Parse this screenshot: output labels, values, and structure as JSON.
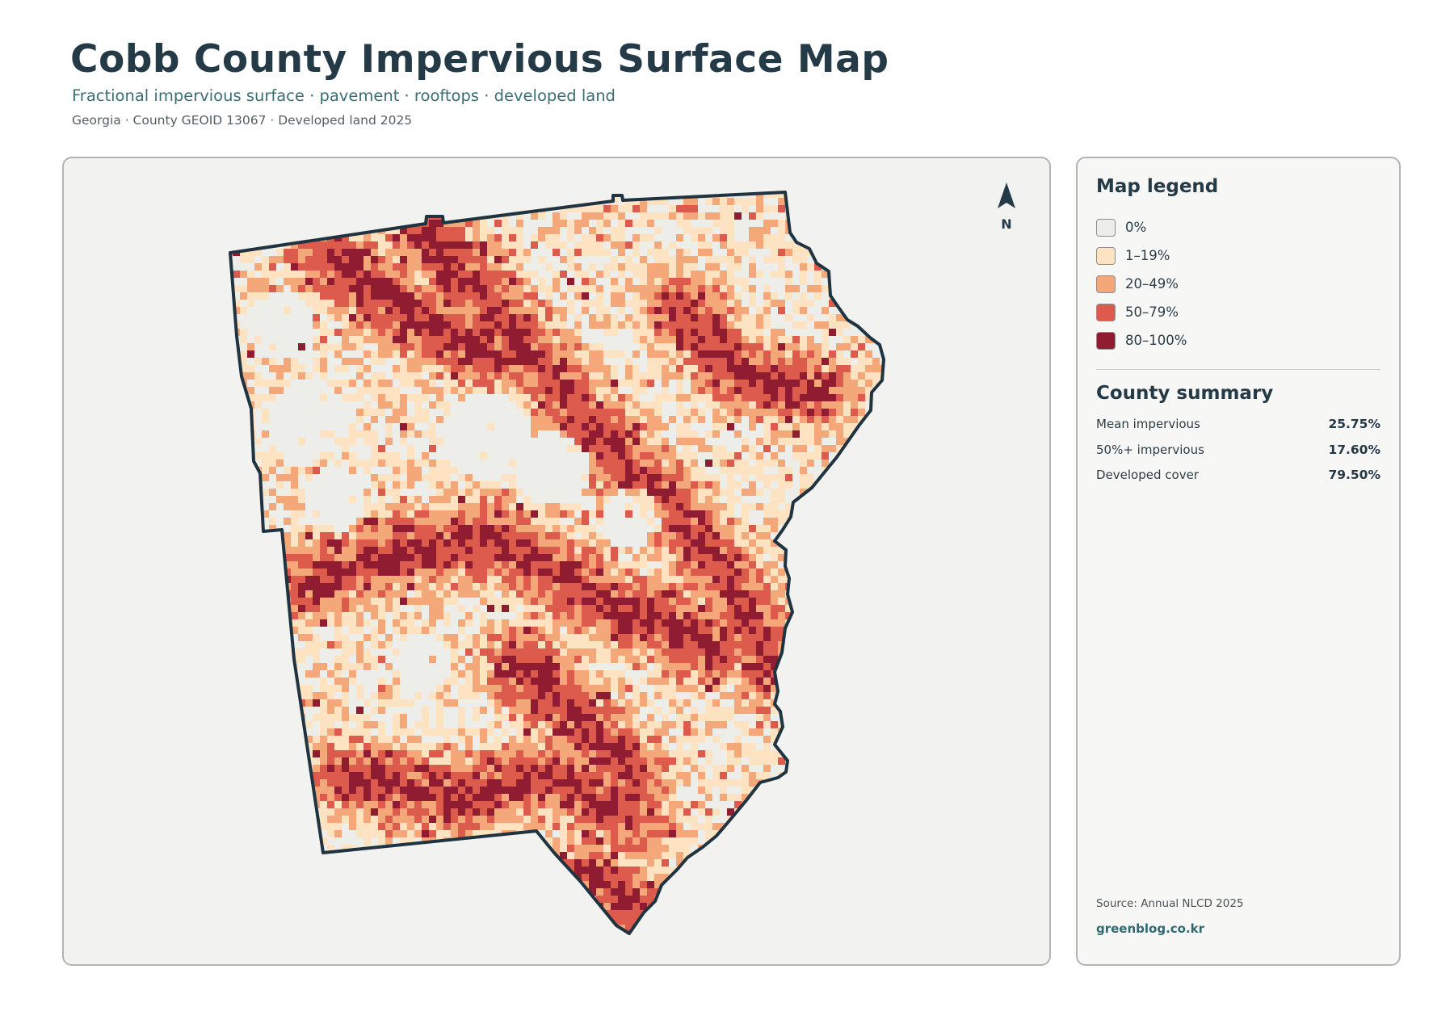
{
  "header": {
    "title": "Cobb County Impervious Surface Map",
    "subtitle": "Fractional impervious surface · pavement · rooftops · developed land",
    "meta": "Georgia · County GEOID 13067 · Developed land 2025"
  },
  "map": {
    "north_label": "N",
    "background_color": "#f2f2f0",
    "boundary_color": "#1f3340"
  },
  "legend": {
    "title": "Map legend",
    "items": [
      {
        "label": "0%",
        "color": "#ededea"
      },
      {
        "label": "1–19%",
        "color": "#fde3c1"
      },
      {
        "label": "20–49%",
        "color": "#f4a778"
      },
      {
        "label": "50–79%",
        "color": "#dc5b4c"
      },
      {
        "label": "80–100%",
        "color": "#8f1c30"
      }
    ]
  },
  "summary": {
    "title": "County summary",
    "rows": [
      {
        "label": "Mean impervious",
        "value": "25.75%"
      },
      {
        "label": "50%+ impervious",
        "value": "17.60%"
      },
      {
        "label": "Developed cover",
        "value": "79.50%"
      }
    ]
  },
  "footer": {
    "source": "Source: Annual NLCD 2025",
    "brand": "greenblog.co.kr"
  }
}
